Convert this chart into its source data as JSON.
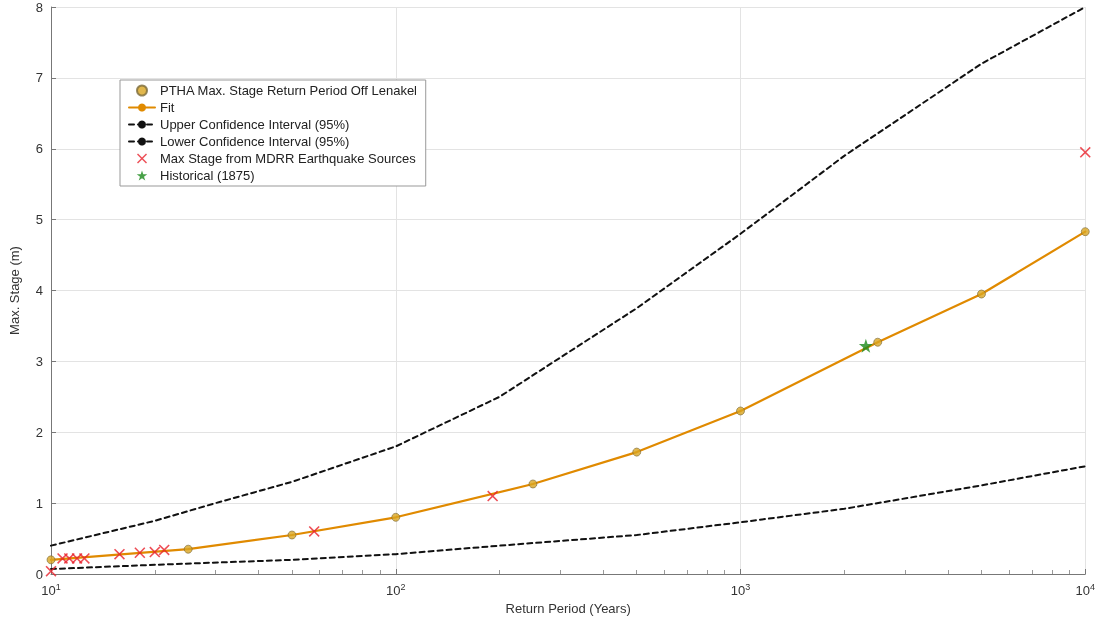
{
  "chart_data": {
    "type": "scatter",
    "xlabel": "Return Period (Years)",
    "ylabel": "Max. Stage (m)",
    "log": "x",
    "grid": true,
    "legend": "top left",
    "xlim": [
      10,
      10000
    ],
    "xticks": [
      {
        "value": 10,
        "label": "10$^{1}$"
      },
      {
        "value": 100,
        "label": "10$^{2}$"
      },
      {
        "value": 1000,
        "label": "10$^{3}$"
      },
      {
        "value": 10000,
        "label": "10$^{4}$"
      }
    ],
    "ylim": [
      0,
      8
    ],
    "yticks": [
      0,
      1,
      2,
      3,
      4,
      5,
      6,
      7,
      8
    ],
    "series": [
      {
        "name": "PTHA Max. Stage Return Period Off Lenakel",
        "marker": "circle",
        "color": "#d9a520",
        "x": [
          10,
          25,
          50,
          100,
          250,
          500,
          1000,
          2500,
          5000,
          10000
        ],
        "values": [
          0.2,
          0.35,
          0.55,
          0.8,
          1.27,
          1.72,
          2.3,
          3.27,
          3.95,
          4.83
        ]
      },
      {
        "name": "Fit",
        "type": "line",
        "marker": "none",
        "line_style": "solid",
        "color": "#e08a00",
        "x": [
          10,
          25,
          50,
          100,
          250,
          500,
          1000,
          2500,
          5000,
          10000
        ],
        "values": [
          0.2,
          0.35,
          0.55,
          0.8,
          1.27,
          1.72,
          2.3,
          3.27,
          3.95,
          4.83
        ]
      },
      {
        "name": "Upper Confidence Interval (95%)",
        "type": "line",
        "marker": "none",
        "line_style": "dashed",
        "color": "#111111",
        "x": [
          10,
          20,
          30,
          50,
          100,
          200,
          500,
          1000,
          2000,
          5000,
          10000
        ],
        "values": [
          0.4,
          0.75,
          1.0,
          1.3,
          1.8,
          2.5,
          3.75,
          4.8,
          5.9,
          7.2,
          8.0
        ]
      },
      {
        "name": "Lower Confidence Interval (95%)",
        "type": "line",
        "marker": "none",
        "line_style": "dashed",
        "color": "#111111",
        "x": [
          10,
          20,
          50,
          100,
          200,
          500,
          1000,
          2000,
          5000,
          10000
        ],
        "values": [
          0.07,
          0.13,
          0.2,
          0.28,
          0.4,
          0.55,
          0.73,
          0.92,
          1.25,
          1.52
        ]
      },
      {
        "name": "Max Stage from MDRR Earthquake Sources",
        "marker": "cross",
        "color": "#e8202a",
        "x": [
          10,
          10.8,
          11.3,
          11.9,
          12.5,
          15.8,
          18.1,
          20,
          21.3,
          58,
          191,
          10000
        ],
        "values": [
          0.04,
          0.22,
          0.22,
          0.22,
          0.22,
          0.28,
          0.3,
          0.31,
          0.34,
          0.6,
          1.1,
          5.95
        ]
      },
      {
        "name": "Historical (1875)",
        "marker": "star",
        "color": "#1a8a1a",
        "x": [
          2310
        ],
        "values": [
          3.22
        ]
      }
    ]
  }
}
